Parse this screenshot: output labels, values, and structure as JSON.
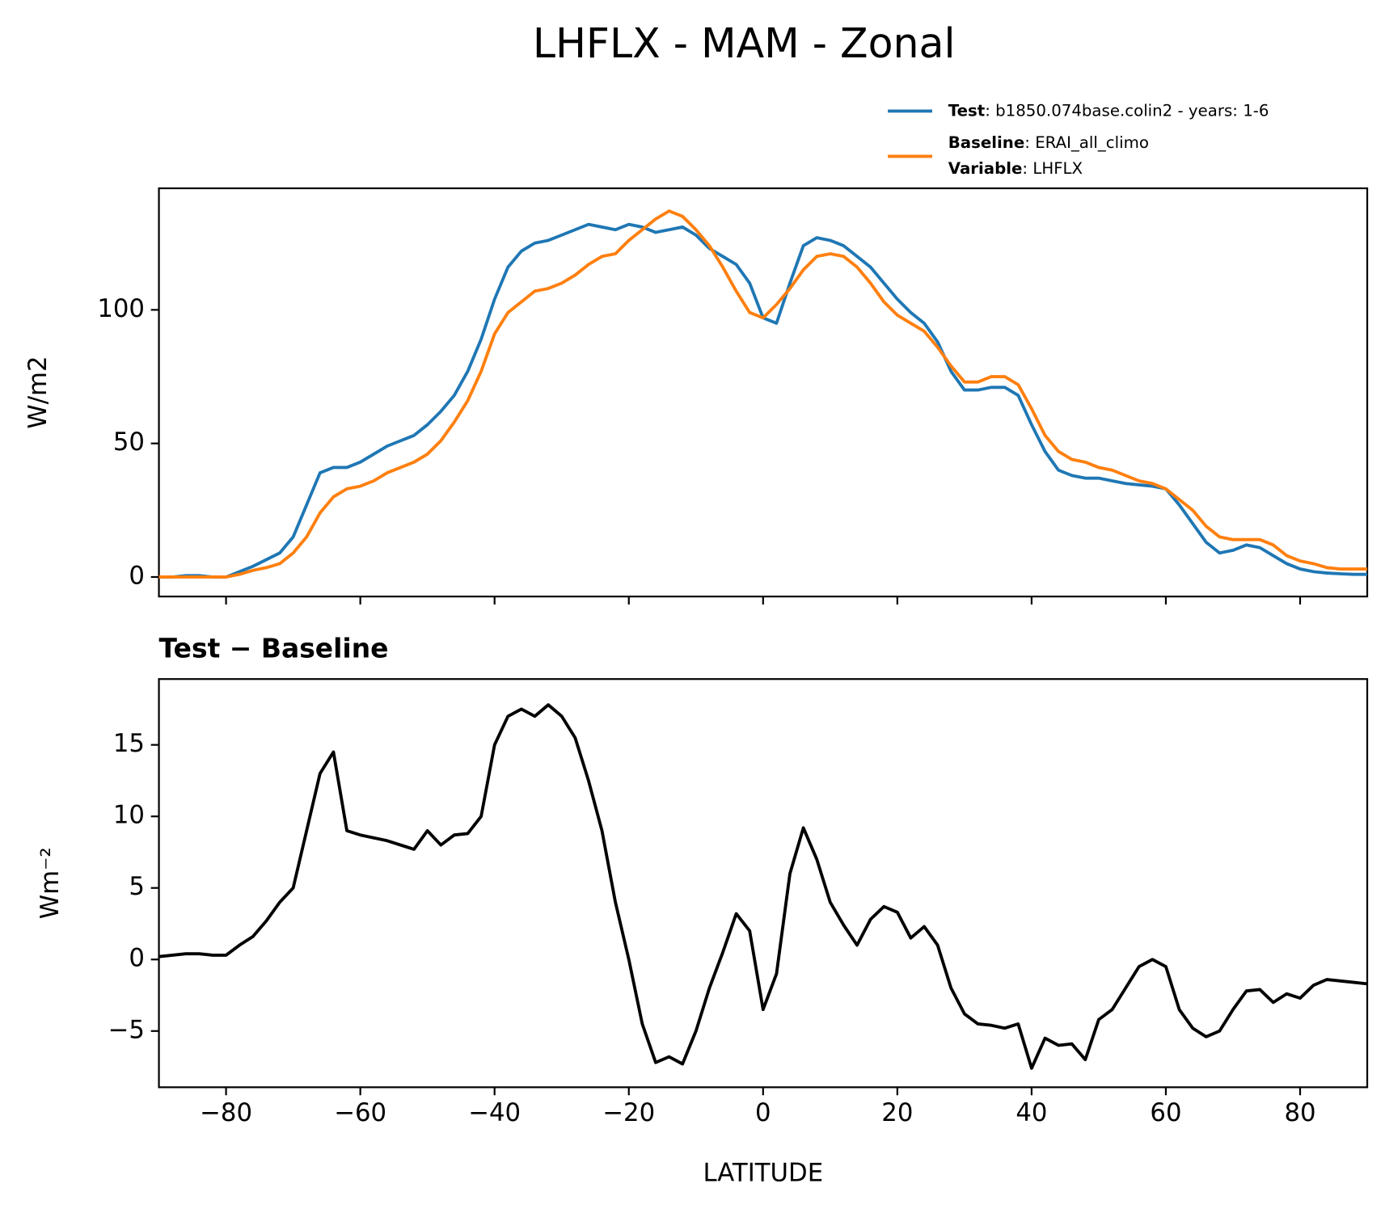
{
  "chart_data": [
    {
      "type": "line",
      "title": "LHFLX - MAM - Zonal",
      "ylabel": "W/m2",
      "x": [
        -90,
        -88,
        -86,
        -84,
        -82,
        -80,
        -78,
        -76,
        -74,
        -72,
        -70,
        -68,
        -66,
        -64,
        -62,
        -60,
        -58,
        -56,
        -54,
        -52,
        -50,
        -48,
        -46,
        -44,
        -42,
        -40,
        -38,
        -36,
        -34,
        -32,
        -30,
        -28,
        -26,
        -24,
        -22,
        -20,
        -18,
        -16,
        -14,
        -12,
        -10,
        -8,
        -6,
        -4,
        -2,
        0,
        2,
        4,
        6,
        8,
        10,
        12,
        14,
        16,
        18,
        20,
        22,
        24,
        26,
        28,
        30,
        32,
        34,
        36,
        38,
        40,
        42,
        44,
        46,
        48,
        50,
        52,
        54,
        56,
        58,
        60,
        62,
        64,
        66,
        68,
        70,
        72,
        74,
        76,
        78,
        80,
        82,
        84,
        86,
        88,
        90
      ],
      "series": [
        {
          "name": "Test",
          "detail": ": b1850.074base.colin2 - years: 1-6",
          "color": "#1f77b4",
          "values": [
            0,
            0,
            0.5,
            0.5,
            0,
            0,
            2,
            4,
            6.5,
            9,
            15,
            27,
            39,
            41,
            41,
            43,
            46,
            49,
            51,
            53,
            57,
            62,
            68,
            77,
            89,
            104,
            116,
            122,
            125,
            126,
            128,
            130,
            132,
            131,
            130,
            132,
            131,
            129,
            130,
            131,
            128,
            123,
            120,
            117,
            110,
            97,
            95,
            110,
            124,
            127,
            126,
            124,
            120,
            116,
            110,
            104,
            99,
            95,
            88,
            77,
            70,
            70,
            71,
            71,
            68,
            57,
            47,
            40,
            38,
            37,
            37,
            36,
            35,
            34.5,
            34,
            33,
            27,
            20,
            13,
            9,
            10,
            12,
            11,
            8,
            5,
            3,
            2,
            1.5,
            1.2,
            1,
            1
          ]
        },
        {
          "name": "Baseline",
          "detail": ": ERAI_all_climo",
          "color": "#ff7f0e",
          "values": [
            0,
            0,
            0,
            0,
            0,
            0,
            1,
            2.5,
            3.5,
            5,
            9,
            15,
            24,
            30,
            33,
            34,
            36,
            39,
            41,
            43,
            46,
            51,
            58,
            66,
            77,
            91,
            99,
            103,
            107,
            108,
            110,
            113,
            117,
            120,
            121,
            126,
            130,
            134,
            137,
            135,
            130,
            124,
            116,
            107,
            99,
            97,
            102,
            108,
            115,
            120,
            121,
            120,
            116,
            110,
            103,
            98,
            95,
            92,
            86,
            79,
            73,
            73,
            75,
            75,
            72,
            63,
            53,
            47,
            44,
            43,
            41,
            40,
            38,
            36,
            35,
            33,
            29,
            25,
            19,
            15,
            14,
            14,
            14,
            12,
            8,
            6,
            5,
            3.5,
            3,
            3,
            3
          ]
        }
      ],
      "variable": {
        "name": "Variable",
        "detail": ": LHFLX"
      },
      "xlim": [
        -90,
        90
      ],
      "xticks": [
        -80,
        -60,
        -40,
        -20,
        0,
        20,
        40,
        60,
        80
      ],
      "ylim": [
        -7.3,
        145.5
      ],
      "yticks": [
        0,
        50,
        100
      ]
    },
    {
      "type": "line",
      "title": "Test − Baseline",
      "ylabel": "Wm⁻²",
      "xlabel": "LATITUDE",
      "x": [
        -90,
        -88,
        -86,
        -84,
        -82,
        -80,
        -78,
        -76,
        -74,
        -72,
        -70,
        -68,
        -66,
        -64,
        -62,
        -60,
        -58,
        -56,
        -54,
        -52,
        -50,
        -48,
        -46,
        -44,
        -42,
        -40,
        -38,
        -36,
        -34,
        -32,
        -30,
        -28,
        -26,
        -24,
        -22,
        -20,
        -18,
        -16,
        -14,
        -12,
        -10,
        -8,
        -6,
        -4,
        -2,
        0,
        2,
        4,
        6,
        8,
        10,
        12,
        14,
        16,
        18,
        20,
        22,
        24,
        26,
        28,
        30,
        32,
        34,
        36,
        38,
        40,
        42,
        44,
        46,
        48,
        50,
        52,
        54,
        56,
        58,
        60,
        62,
        64,
        66,
        68,
        70,
        72,
        74,
        76,
        78,
        80,
        82,
        84,
        86,
        88,
        90
      ],
      "series": [
        {
          "color": "#000000",
          "values": [
            0.2,
            0.3,
            0.4,
            0.4,
            0.3,
            0.3,
            1,
            1.6,
            2.7,
            4,
            5,
            9,
            13,
            14.5,
            9,
            8.7,
            8.5,
            8.3,
            8,
            7.7,
            9,
            8,
            8.7,
            8.8,
            10,
            15,
            17,
            17.5,
            17,
            17.8,
            17,
            15.5,
            12.5,
            9,
            4,
            0,
            -4.5,
            -7.2,
            -6.8,
            -7.3,
            -5,
            -2,
            0.5,
            3.2,
            2,
            -3.5,
            -1,
            6,
            9.2,
            7,
            4,
            2.4,
            1,
            2.8,
            3.7,
            3.3,
            1.5,
            2.3,
            1,
            -2,
            -3.8,
            -4.5,
            -4.6,
            -4.8,
            -4.5,
            -7.6,
            -5.5,
            -6,
            -5.9,
            -7,
            -4.2,
            -3.5,
            -2,
            -0.5,
            0,
            -0.5,
            -3.5,
            -4.8,
            -5.4,
            -5,
            -3.5,
            -2.2,
            -2.1,
            -3,
            -2.4,
            -2.7,
            -1.8,
            -1.4,
            -1.5,
            -1.6,
            -1.7
          ]
        }
      ],
      "xlim": [
        -90,
        90
      ],
      "xticks": [
        {
          "value": -80,
          "label": "−80"
        },
        {
          "value": -60,
          "label": "−60"
        },
        {
          "value": -40,
          "label": "−40"
        },
        {
          "value": -20,
          "label": "−20"
        },
        0,
        20,
        40,
        60,
        80
      ],
      "ylim": [
        -8.93,
        19.6
      ],
      "yticks": [
        {
          "value": -5,
          "label": "−5"
        },
        0,
        5,
        10,
        15
      ]
    }
  ]
}
